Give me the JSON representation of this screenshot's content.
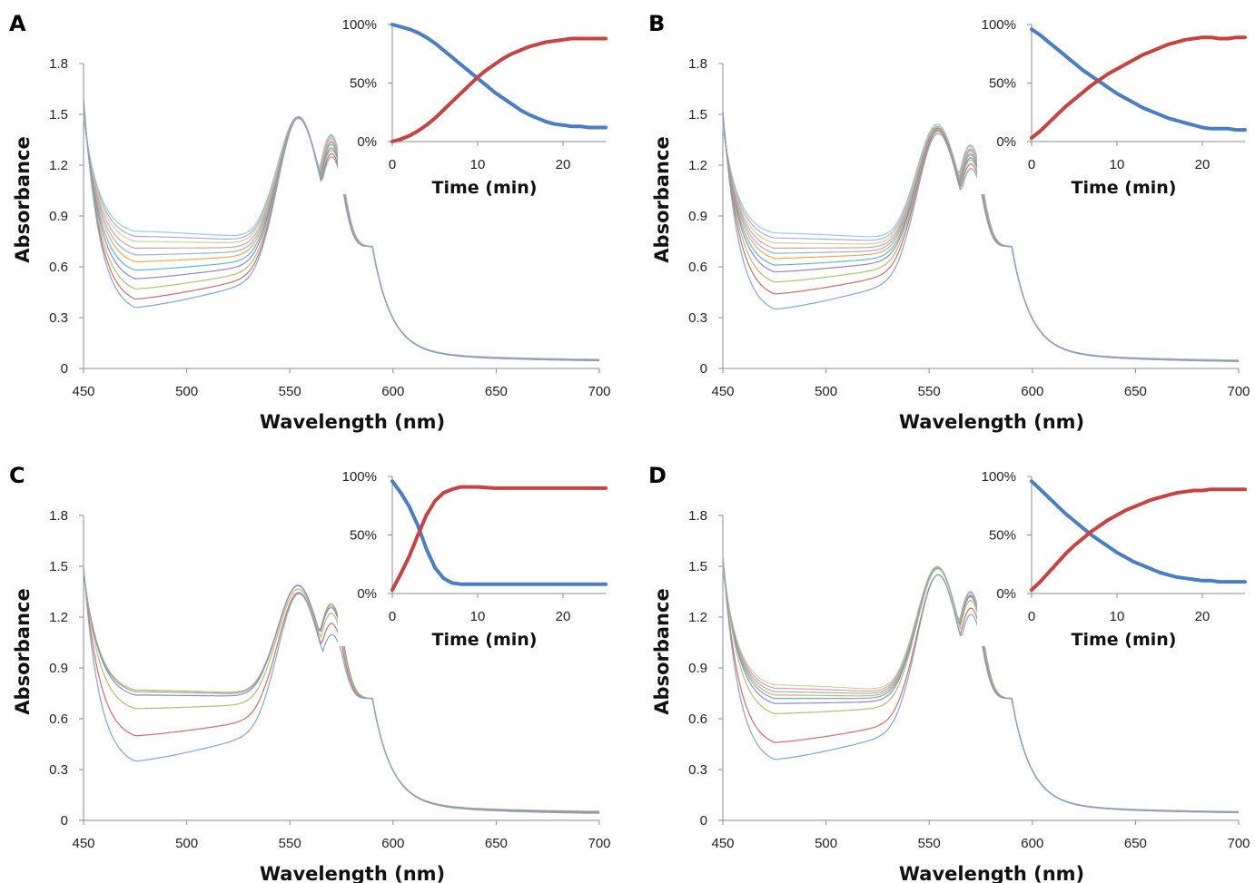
{
  "colors": {
    "spectra": [
      "#7ea6d8",
      "#d46a6a",
      "#a9c46a",
      "#9b82c2",
      "#5fb8cc",
      "#f0a84a",
      "#95b3df",
      "#e59c9c",
      "#c4d69e",
      "#b8a8d4",
      "#8fd0dd",
      "#f6c28e",
      "#c8c8c8"
    ],
    "loss": "#4a7ec4",
    "gain": "#c8433f"
  },
  "chart_data": [
    {
      "panel_label": "A",
      "type": "line",
      "xlabel": "Wavelength (nm)",
      "ylabel": "Absorbance",
      "xlim": [
        450,
        700
      ],
      "ylim": [
        0,
        1.8
      ],
      "xticks": [
        "450",
        "500",
        "550",
        "600",
        "650",
        "700"
      ],
      "yticks": [
        "0",
        "0.3",
        "0.6",
        "0.9",
        "1.2",
        "1.5",
        "1.8"
      ],
      "spectra": {
        "description_count": 11,
        "y450": [
          1.6,
          1.58,
          1.56,
          1.55,
          1.54,
          1.53,
          1.52,
          1.51,
          1.5,
          1.49,
          1.48
        ],
        "y475": [
          0.36,
          0.41,
          0.47,
          0.53,
          0.58,
          0.63,
          0.67,
          0.71,
          0.75,
          0.78,
          0.81
        ],
        "peak555": [
          1.45,
          1.43,
          1.41,
          1.39,
          1.37,
          1.35,
          1.33,
          1.31,
          1.3,
          1.29,
          1.28
        ],
        "shoulder570": [
          1.28,
          1.29,
          1.3,
          1.3,
          1.31,
          1.31,
          1.31,
          1.32,
          1.32,
          1.32,
          1.32
        ],
        "tail700": [
          0.035,
          0.036,
          0.037,
          0.038,
          0.039,
          0.04,
          0.041,
          0.042,
          0.043,
          0.044,
          0.045
        ]
      },
      "inset": {
        "xlabel": "Time (min)",
        "xlim": [
          0,
          25
        ],
        "ylim": [
          0,
          100
        ],
        "xticks": [
          "0",
          "10",
          "20"
        ],
        "yticks": [
          "0%",
          "50%",
          "100%"
        ],
        "series": [
          {
            "role": "loss",
            "x": [
              0,
              1,
              2,
              3,
              4,
              5,
              6,
              7,
              8,
              9,
              10,
              11,
              12,
              13,
              14,
              15,
              16,
              17,
              18,
              19,
              20,
              21,
              22,
              23,
              24,
              25
            ],
            "y": [
              100,
              98,
              96,
              93,
              89,
              84,
              78,
              72,
              66,
              60,
              54,
              48,
              42,
              37,
              32,
              27,
              23,
              20,
              17,
              15,
              14,
              13,
              13,
              12,
              12,
              12
            ]
          },
          {
            "role": "gain",
            "x": [
              0,
              1,
              2,
              3,
              4,
              5,
              6,
              7,
              8,
              9,
              10,
              11,
              12,
              13,
              14,
              15,
              16,
              17,
              18,
              19,
              20,
              21,
              22,
              23,
              24,
              25
            ],
            "y": [
              0,
              2,
              5,
              9,
              14,
              20,
              27,
              34,
              41,
              48,
              55,
              61,
              66,
              71,
              75,
              78,
              81,
              83,
              85,
              86,
              87,
              88,
              88,
              88,
              88,
              88
            ]
          }
        ]
      }
    },
    {
      "panel_label": "B",
      "type": "line",
      "xlabel": "Wavelength (nm)",
      "ylabel": "Absorbance",
      "xlim": [
        450,
        700
      ],
      "ylim": [
        0,
        1.8
      ],
      "xticks": [
        "450",
        "500",
        "550",
        "600",
        "650",
        "700"
      ],
      "yticks": [
        "0",
        "0.3",
        "0.6",
        "0.9",
        "1.2",
        "1.5",
        "1.8"
      ],
      "spectra": {
        "y450": [
          1.52,
          1.51,
          1.5,
          1.49,
          1.48,
          1.47,
          1.46,
          1.45,
          1.44,
          1.43,
          1.42
        ],
        "y475": [
          0.35,
          0.44,
          0.51,
          0.57,
          0.61,
          0.65,
          0.68,
          0.71,
          0.74,
          0.77,
          0.8
        ],
        "peak555": [
          1.36,
          1.34,
          1.32,
          1.3,
          1.29,
          1.28,
          1.27,
          1.26,
          1.25,
          1.24,
          1.24
        ],
        "shoulder570": [
          1.2,
          1.21,
          1.22,
          1.22,
          1.23,
          1.23,
          1.24,
          1.24,
          1.24,
          1.25,
          1.25
        ],
        "tail700": [
          0.03,
          0.031,
          0.032,
          0.033,
          0.034,
          0.035,
          0.036,
          0.037,
          0.038,
          0.039,
          0.04
        ]
      },
      "inset": {
        "xlabel": "Time (min)",
        "xlim": [
          0,
          25
        ],
        "ylim": [
          0,
          100
        ],
        "xticks": [
          "0",
          "10",
          "20"
        ],
        "yticks": [
          "0%",
          "50%",
          "100%"
        ],
        "series": [
          {
            "role": "loss",
            "x": [
              0,
              1,
              2,
              3,
              4,
              5,
              6,
              7,
              8,
              9,
              10,
              11,
              12,
              13,
              14,
              15,
              16,
              17,
              18,
              19,
              20,
              21,
              22,
              23,
              24,
              25
            ],
            "y": [
              96,
              91,
              85,
              79,
              73,
              67,
              61,
              56,
              51,
              46,
              41,
              37,
              33,
              29,
              26,
              23,
              20,
              18,
              16,
              14,
              12,
              11,
              11,
              11,
              10,
              10
            ]
          },
          {
            "role": "gain",
            "x": [
              0,
              1,
              2,
              3,
              4,
              5,
              6,
              7,
              8,
              9,
              10,
              11,
              12,
              13,
              14,
              15,
              16,
              17,
              18,
              19,
              20,
              21,
              22,
              23,
              24,
              25
            ],
            "y": [
              3,
              9,
              16,
              23,
              30,
              36,
              42,
              48,
              53,
              58,
              62,
              66,
              70,
              74,
              77,
              80,
              83,
              85,
              87,
              88,
              89,
              89,
              88,
              88,
              89,
              89
            ]
          }
        ]
      }
    },
    {
      "panel_label": "C",
      "type": "line",
      "xlabel": "Wavelength (nm)",
      "ylabel": "Absorbance",
      "xlim": [
        450,
        700
      ],
      "ylim": [
        0,
        1.8
      ],
      "xticks": [
        "450",
        "500",
        "550",
        "600",
        "650",
        "700"
      ],
      "yticks": [
        "0",
        "0.3",
        "0.6",
        "0.9",
        "1.2",
        "1.5",
        "1.8"
      ],
      "spectra": {
        "y450": [
          1.5,
          1.49,
          1.48,
          1.47,
          1.46,
          1.46
        ],
        "y475": [
          0.35,
          0.5,
          0.66,
          0.74,
          0.76,
          0.77
        ],
        "peak555": [
          1.31,
          1.26,
          1.22,
          1.21,
          1.2,
          1.2
        ],
        "shoulder570": [
          1.1,
          1.14,
          1.17,
          1.19,
          1.2,
          1.21
        ],
        "tail700": [
          0.03,
          0.033,
          0.036,
          0.039,
          0.042,
          0.045
        ]
      },
      "inset": {
        "xlabel": "Time (min)",
        "xlim": [
          0,
          25
        ],
        "ylim": [
          0,
          100
        ],
        "xticks": [
          "0",
          "10",
          "20"
        ],
        "yticks": [
          "0%",
          "50%",
          "100%"
        ],
        "series": [
          {
            "role": "loss",
            "x": [
              0,
              1,
              2,
              3,
              4,
              5,
              6,
              7,
              8,
              9,
              10,
              12,
              14,
              16,
              18,
              20,
              22,
              25
            ],
            "y": [
              96,
              86,
              74,
              58,
              38,
              22,
              13,
              9,
              8,
              8,
              8,
              8,
              8,
              8,
              8,
              8,
              8,
              8
            ]
          },
          {
            "role": "gain",
            "x": [
              0,
              1,
              2,
              3,
              4,
              5,
              6,
              7,
              8,
              9,
              10,
              12,
              14,
              16,
              18,
              20,
              22,
              25
            ],
            "y": [
              3,
              17,
              32,
              50,
              67,
              79,
              86,
              89,
              91,
              91,
              91,
              90,
              90,
              90,
              90,
              90,
              90,
              90
            ]
          }
        ]
      }
    },
    {
      "panel_label": "D",
      "type": "line",
      "xlabel": "Wavelength (nm)",
      "ylabel": "Absorbance",
      "xlim": [
        450,
        700
      ],
      "ylim": [
        0,
        1.8
      ],
      "xticks": [
        "450",
        "500",
        "550",
        "600",
        "650",
        "700"
      ],
      "yticks": [
        "0",
        "0.3",
        "0.6",
        "0.9",
        "1.2",
        "1.5",
        "1.8"
      ],
      "spectra": {
        "y450": [
          1.56,
          1.55,
          1.54,
          1.53,
          1.52,
          1.51,
          1.5,
          1.49,
          1.48
        ],
        "y475": [
          0.36,
          0.46,
          0.63,
          0.69,
          0.72,
          0.74,
          0.76,
          0.78,
          0.8
        ],
        "peak555": [
          1.42,
          1.38,
          1.35,
          1.33,
          1.32,
          1.31,
          1.31,
          1.3,
          1.3
        ],
        "shoulder570": [
          1.24,
          1.26,
          1.27,
          1.28,
          1.28,
          1.28,
          1.29,
          1.29,
          1.29
        ],
        "tail700": [
          0.035,
          0.036,
          0.037,
          0.038,
          0.039,
          0.04,
          0.041,
          0.042,
          0.043
        ]
      },
      "inset": {
        "xlabel": "Time (min)",
        "xlim": [
          0,
          25
        ],
        "ylim": [
          0,
          100
        ],
        "xticks": [
          "0",
          "10",
          "20"
        ],
        "yticks": [
          "0%",
          "50%",
          "100%"
        ],
        "series": [
          {
            "role": "loss",
            "x": [
              0,
              1,
              2,
              3,
              4,
              5,
              6,
              7,
              8,
              9,
              10,
              11,
              12,
              13,
              14,
              15,
              16,
              17,
              18,
              19,
              20,
              21,
              22,
              23,
              24,
              25
            ],
            "y": [
              96,
              89,
              82,
              75,
              68,
              62,
              56,
              50,
              45,
              40,
              35,
              31,
              27,
              24,
              21,
              18,
              16,
              14,
              13,
              12,
              11,
              11,
              10,
              10,
              10,
              10
            ]
          },
          {
            "role": "gain",
            "x": [
              0,
              1,
              2,
              3,
              4,
              5,
              6,
              7,
              8,
              9,
              10,
              11,
              12,
              13,
              14,
              15,
              16,
              17,
              18,
              19,
              20,
              21,
              22,
              23,
              24,
              25
            ],
            "y": [
              3,
              10,
              18,
              26,
              34,
              41,
              47,
              53,
              58,
              63,
              67,
              71,
              74,
              77,
              80,
              82,
              84,
              86,
              87,
              88,
              88,
              89,
              89,
              89,
              89,
              89
            ]
          }
        ]
      }
    }
  ]
}
